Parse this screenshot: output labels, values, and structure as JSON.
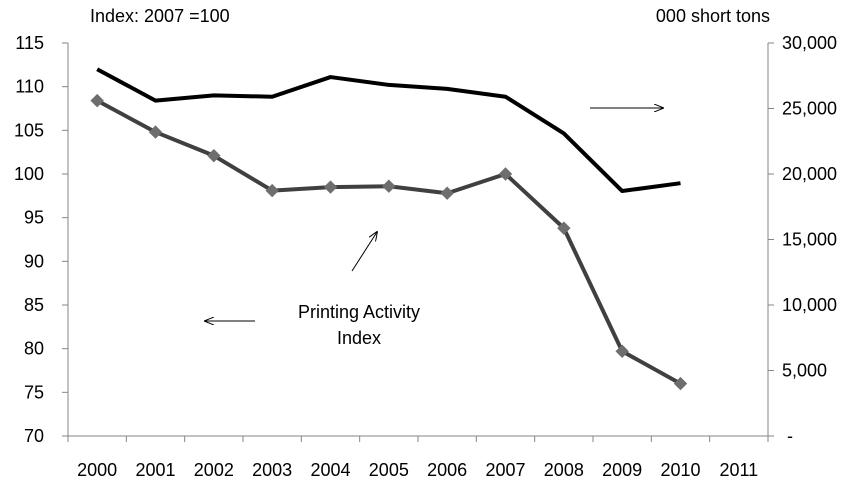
{
  "chart_data": {
    "type": "line",
    "title": "",
    "left_axis_unit_label": "Index: 2007 =100",
    "right_axis_unit_label": "000 short tons",
    "categories": [
      "2000",
      "2001",
      "2002",
      "2003",
      "2004",
      "2005",
      "2006",
      "2007",
      "2008",
      "2009",
      "2010",
      "2011"
    ],
    "left_axis": {
      "ylim": [
        70,
        115
      ],
      "ticks": [
        "70",
        "75",
        "80",
        "85",
        "90",
        "95",
        "100",
        "105",
        "110",
        "115"
      ],
      "tick_values": [
        70,
        75,
        80,
        85,
        90,
        95,
        100,
        105,
        110,
        115
      ]
    },
    "right_axis": {
      "ylim": [
        0,
        30000
      ],
      "ticks": [
        "-",
        "5,000",
        "10,000",
        "15,000",
        "20,000",
        "25,000",
        "30,000"
      ],
      "tick_values": [
        0,
        5000,
        10000,
        15000,
        20000,
        25000,
        30000
      ]
    },
    "series": [
      {
        "axis": "left",
        "color": "#404040",
        "marker": "diamond",
        "values": [
          108.4,
          104.8,
          102.1,
          98.1,
          98.5,
          98.6,
          97.8,
          100.0,
          93.8,
          79.7,
          76.0,
          null
        ]
      },
      {
        "axis": "right",
        "color": "#000000",
        "marker": "none",
        "values": [
          28000,
          25600,
          26000,
          25900,
          27400,
          26800,
          26500,
          25900,
          23100,
          18700,
          19300,
          null
        ]
      }
    ],
    "annotations": {
      "index_label_line1": "Printing Activity",
      "index_label_line2": "Index"
    },
    "grid": false,
    "legend": "none"
  }
}
